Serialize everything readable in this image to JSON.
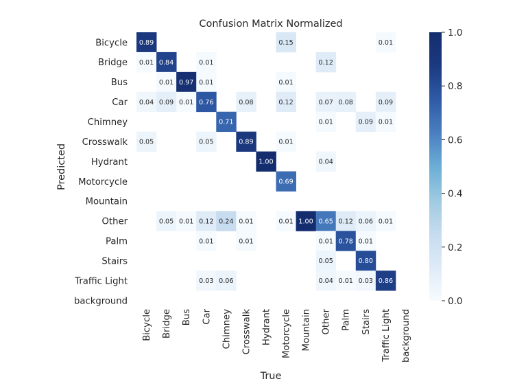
{
  "chart_data": {
    "type": "heatmap",
    "title": "Confusion Matrix Normalized",
    "xlabel": "True",
    "ylabel": "Predicted",
    "x_categories": [
      "Bicycle",
      "Bridge",
      "Bus",
      "Car",
      "Chimney",
      "Crosswalk",
      "Hydrant",
      "Motorcycle",
      "Mountain",
      "Other",
      "Palm",
      "Stairs",
      "Traffic Light",
      "background"
    ],
    "y_categories": [
      "Bicycle",
      "Bridge",
      "Bus",
      "Car",
      "Chimney",
      "Crosswalk",
      "Hydrant",
      "Motorcycle",
      "Mountain",
      "Other",
      "Palm",
      "Stairs",
      "Traffic Light",
      "background"
    ],
    "values": [
      [
        0.89,
        null,
        null,
        null,
        null,
        null,
        null,
        0.15,
        null,
        null,
        null,
        null,
        0.01,
        null
      ],
      [
        0.01,
        0.84,
        null,
        0.01,
        null,
        null,
        null,
        null,
        null,
        0.12,
        null,
        null,
        null,
        null
      ],
      [
        null,
        0.01,
        0.97,
        0.01,
        null,
        null,
        null,
        0.01,
        null,
        null,
        null,
        null,
        null,
        null
      ],
      [
        0.04,
        0.09,
        0.01,
        0.76,
        null,
        0.08,
        null,
        0.12,
        null,
        0.07,
        0.08,
        null,
        0.09,
        null
      ],
      [
        null,
        null,
        null,
        null,
        0.71,
        null,
        null,
        null,
        null,
        0.01,
        null,
        0.09,
        0.01,
        null
      ],
      [
        0.05,
        null,
        null,
        0.05,
        null,
        0.89,
        null,
        0.01,
        null,
        null,
        null,
        null,
        null,
        null
      ],
      [
        null,
        null,
        null,
        null,
        null,
        null,
        1.0,
        null,
        null,
        0.04,
        null,
        null,
        null,
        null
      ],
      [
        null,
        null,
        null,
        null,
        null,
        null,
        null,
        0.69,
        null,
        null,
        null,
        null,
        null,
        null
      ],
      [
        null,
        null,
        null,
        null,
        null,
        null,
        null,
        null,
        null,
        null,
        null,
        null,
        null,
        null
      ],
      [
        null,
        0.05,
        0.01,
        0.12,
        0.24,
        0.01,
        null,
        0.01,
        1.0,
        0.65,
        0.12,
        0.06,
        0.01,
        null
      ],
      [
        null,
        null,
        null,
        0.01,
        null,
        0.01,
        null,
        null,
        null,
        0.01,
        0.78,
        0.01,
        null,
        null
      ],
      [
        null,
        null,
        null,
        null,
        null,
        null,
        null,
        null,
        null,
        0.05,
        null,
        0.8,
        null,
        null
      ],
      [
        null,
        null,
        null,
        0.03,
        0.06,
        null,
        null,
        null,
        null,
        0.04,
        0.01,
        0.03,
        0.86,
        null
      ],
      [
        null,
        null,
        null,
        null,
        null,
        null,
        null,
        null,
        null,
        null,
        null,
        null,
        null,
        null
      ]
    ],
    "colorbar": {
      "min": 0.0,
      "max": 1.0,
      "ticks": [
        0.0,
        0.2,
        0.4,
        0.6,
        0.8,
        1.0
      ],
      "tick_labels": [
        "0.0",
        "0.2",
        "0.4",
        "0.6",
        "0.8",
        "1.0"
      ]
    },
    "colormap": [
      "#f7fbff",
      "#deebf7",
      "#c6dbef",
      "#9ecae1",
      "#6baed6",
      "#4a7fc0",
      "#2f5aa6",
      "#1c3a80",
      "#142d6e"
    ]
  }
}
